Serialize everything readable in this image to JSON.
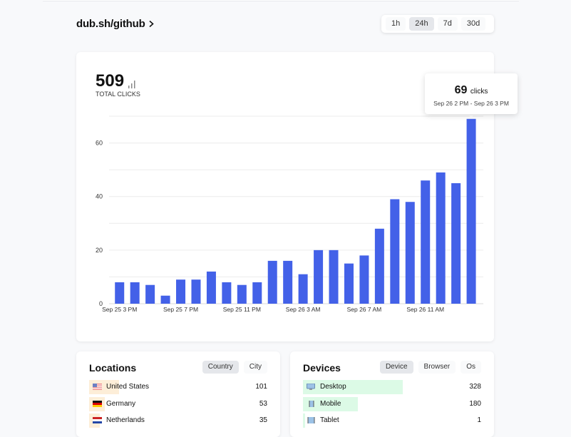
{
  "header": {
    "title": "dub.sh/github",
    "ranges": [
      "1h",
      "24h",
      "7d",
      "30d"
    ],
    "active_range": "24h"
  },
  "summary": {
    "total": "509",
    "label": "TOTAL CLICKS"
  },
  "tooltip": {
    "value": "69",
    "unit": "clicks",
    "range": "Sep 26 2 PM - Sep 26 3 PM"
  },
  "colors": {
    "bar": "#4361e8",
    "location_bar": "#fdeed8",
    "device_bar": "#dcfae6"
  },
  "chart_data": {
    "type": "bar",
    "ylim": [
      0,
      70
    ],
    "yticks": [
      0,
      20,
      40,
      60
    ],
    "grid": true,
    "xtick_labels": [
      {
        "index": 0,
        "label": "Sep 25 3 PM"
      },
      {
        "index": 4,
        "label": "Sep 25 7 PM"
      },
      {
        "index": 8,
        "label": "Sep 25 11 PM"
      },
      {
        "index": 12,
        "label": "Sep 26 3 AM"
      },
      {
        "index": 16,
        "label": "Sep 26 7 AM"
      },
      {
        "index": 20,
        "label": "Sep 26 11 AM"
      }
    ],
    "values": [
      8,
      8,
      7,
      3,
      9,
      9,
      12,
      8,
      7,
      8,
      16,
      16,
      11,
      20,
      20,
      15,
      18,
      28,
      39,
      38,
      46,
      49,
      45,
      69
    ]
  },
  "locations": {
    "title": "Locations",
    "tabs": [
      "Country",
      "City"
    ],
    "active_tab": "Country",
    "items": [
      {
        "name": "United States",
        "value": 101,
        "flag": "us"
      },
      {
        "name": "Germany",
        "value": 53,
        "flag": "de"
      },
      {
        "name": "Netherlands",
        "value": 35,
        "flag": "nl"
      }
    ]
  },
  "devices": {
    "title": "Devices",
    "tabs": [
      "Device",
      "Browser",
      "Os"
    ],
    "active_tab": "Device",
    "items": [
      {
        "name": "Desktop",
        "value": 328,
        "icon": "desktop-icon"
      },
      {
        "name": "Mobile",
        "value": 180,
        "icon": "mobile-icon"
      },
      {
        "name": "Tablet",
        "value": 1,
        "icon": "tablet-icon"
      }
    ]
  }
}
